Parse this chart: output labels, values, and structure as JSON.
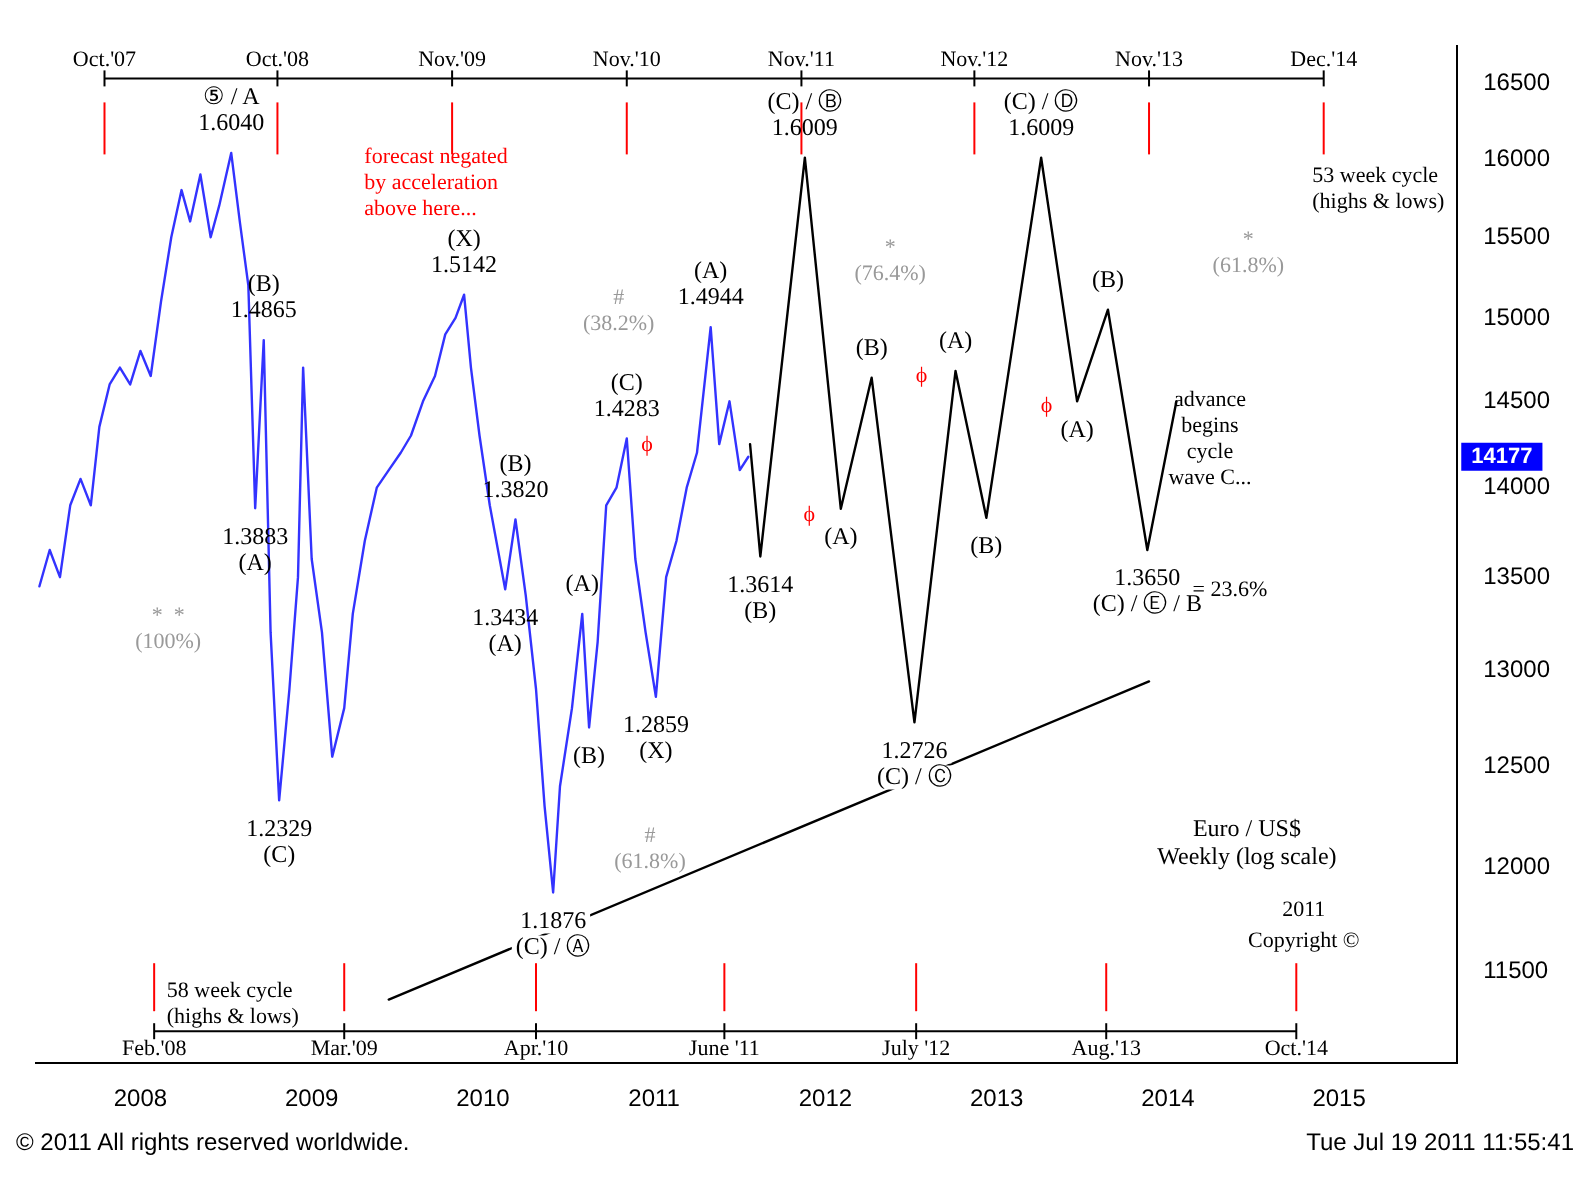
{
  "chart_data": {
    "type": "line",
    "title": "Euro / US$",
    "subtitle": "Weekly (log scale)",
    "log": "y",
    "legend": false,
    "marker": "none",
    "line_style": "solid",
    "xlim": [
      2007.39,
      2015.69
    ],
    "xticks": [
      2008,
      2009,
      2010,
      2011,
      2012,
      2013,
      2014,
      2015
    ],
    "ylim": [
      11080,
      16750
    ],
    "yticks": [
      11500,
      12000,
      12500,
      13000,
      13500,
      14000,
      14500,
      15000,
      15500,
      16000,
      16500
    ],
    "series": [
      {
        "color": "#3333ff",
        "x": [
          2007.41,
          2007.47,
          2007.53,
          2007.59,
          2007.65,
          2007.71,
          2007.76,
          2007.82,
          2007.88,
          2007.94,
          2008.0,
          2008.06,
          2008.12,
          2008.18,
          2008.24,
          2008.29,
          2008.35,
          2008.41,
          2008.46,
          2008.53,
          2008.58,
          2008.63,
          2008.67,
          2008.72,
          2008.76,
          2008.81,
          2008.87,
          2008.92,
          2008.95,
          2009.0,
          2009.06,
          2009.12,
          2009.19,
          2009.24,
          2009.31,
          2009.38,
          2009.45,
          2009.52,
          2009.58,
          2009.65,
          2009.72,
          2009.78,
          2009.84,
          2009.89,
          2009.93,
          2009.98,
          2010.04,
          2010.13,
          2010.19,
          2010.25,
          2010.31,
          2010.36,
          2010.41,
          2010.45,
          2010.52,
          2010.58,
          2010.62,
          2010.67,
          2010.72,
          2010.78,
          2010.84,
          2010.89,
          2010.95,
          2011.01,
          2011.07,
          2011.13,
          2011.19,
          2011.25,
          2011.33,
          2011.38,
          2011.44,
          2011.5,
          2011.55
        ],
        "values": [
          13450,
          13650,
          13500,
          13900,
          14050,
          13900,
          14350,
          14600,
          14700,
          14600,
          14800,
          14650,
          15100,
          15500,
          15800,
          15600,
          15900,
          15500,
          15700,
          16040,
          15600,
          15200,
          13883,
          14865,
          13200,
          12329,
          12900,
          13500,
          14700,
          13600,
          13200,
          12550,
          12800,
          13300,
          13700,
          14000,
          14100,
          14200,
          14300,
          14500,
          14650,
          14900,
          15000,
          15142,
          14700,
          14300,
          13900,
          13434,
          13820,
          13400,
          12900,
          12300,
          11876,
          12400,
          12800,
          13300,
          12700,
          13150,
          13900,
          14000,
          14283,
          13600,
          13200,
          12859,
          13500,
          13700,
          14000,
          14200,
          14944,
          14250,
          14500,
          14100,
          14177
        ]
      },
      {
        "color": "#000000",
        "x": [
          2011.56,
          2011.62,
          2011.88,
          2012.09,
          2012.27,
          2012.52,
          2012.76,
          2012.94,
          2013.26,
          2013.47,
          2013.65,
          2013.88,
          2014.05
        ],
        "values": [
          14250,
          13614,
          16009,
          13880,
          14640,
          12726,
          14680,
          13830,
          16009,
          14500,
          15050,
          13650,
          14500
        ]
      },
      {
        "color": "#000000",
        "x": [
          2009.45,
          2013.89
        ],
        "values": [
          11370,
          12940
        ]
      }
    ],
    "ref_lines": [
      {
        "axis": "x",
        "value": 2007.79,
        "label": "Oct.'07",
        "color": "#ff0000"
      },
      {
        "axis": "x",
        "value": 2008.8,
        "label": "Oct.'08",
        "color": "#ff0000"
      },
      {
        "axis": "x",
        "value": 2009.82,
        "label": "Nov.'09",
        "color": "#ff0000"
      },
      {
        "axis": "x",
        "value": 2010.84,
        "label": "Nov.'10",
        "color": "#ff0000"
      },
      {
        "axis": "x",
        "value": 2011.86,
        "label": "Nov.'11",
        "color": "#ff0000"
      },
      {
        "axis": "x",
        "value": 2012.87,
        "label": "Nov.'12",
        "color": "#ff0000"
      },
      {
        "axis": "x",
        "value": 2013.89,
        "label": "Nov.'13",
        "color": "#ff0000"
      },
      {
        "axis": "x",
        "value": 2014.91,
        "label": "Dec.'14",
        "color": "#ff0000"
      },
      {
        "axis": "x",
        "value": 2008.08,
        "label": "Feb.'08",
        "color": "#ff0000"
      },
      {
        "axis": "x",
        "value": 2009.19,
        "label": "Mar.'09",
        "color": "#ff0000"
      },
      {
        "axis": "x",
        "value": 2010.31,
        "label": "Apr.'10",
        "color": "#ff0000"
      },
      {
        "axis": "x",
        "value": 2011.41,
        "label": "June '11",
        "color": "#ff0000"
      },
      {
        "axis": "x",
        "value": 2012.53,
        "label": "July '12",
        "color": "#ff0000"
      },
      {
        "axis": "x",
        "value": 2013.64,
        "label": "Aug.'13",
        "color": "#ff0000"
      },
      {
        "axis": "x",
        "value": 2014.75,
        "label": "Oct.'14",
        "color": "#ff0000"
      }
    ],
    "annotations": [
      {
        "text": "⑤ / A\n1.6040",
        "x": 2008.53,
        "y": 16040
      },
      {
        "text": "(B)\n1.4865",
        "x": 2008.72,
        "y": 14865
      },
      {
        "text": "1.3883\n(A)",
        "x": 2008.67,
        "y": 13883
      },
      {
        "text": "(X)\n1.5142",
        "x": 2009.89,
        "y": 15142
      },
      {
        "text": "(A)\n1.4944",
        "x": 2011.33,
        "y": 14944
      },
      {
        "text": "(C)\n1.4283",
        "x": 2010.84,
        "y": 14283
      },
      {
        "text": "(B)\n1.3820",
        "x": 2010.19,
        "y": 13820
      },
      {
        "text": "1.3434\n(A)",
        "x": 2010.13,
        "y": 13434
      },
      {
        "text": "(A)",
        "x": 2010.58,
        "y": 13300
      },
      {
        "text": "(B)",
        "x": 2010.62,
        "y": 12700
      },
      {
        "text": "1.2859\n(X)",
        "x": 2011.01,
        "y": 12859
      },
      {
        "text": "1.2329\n(C)",
        "x": 2008.81,
        "y": 12329
      },
      {
        "text": "1.1876\n(C) / Ⓐ",
        "x": 2010.41,
        "y": 11876
      },
      {
        "text": "1.3614\n(B)",
        "x": 2011.62,
        "y": 13614
      },
      {
        "text": "(C) / Ⓑ\n1.6009",
        "x": 2011.88,
        "y": 16009
      },
      {
        "text": "(C) / Ⓓ\n1.6009",
        "x": 2013.26,
        "y": 16009
      },
      {
        "text": "(A)",
        "x": 2012.09,
        "y": 13880
      },
      {
        "text": "(B)",
        "x": 2012.27,
        "y": 14640
      },
      {
        "text": "(A)",
        "x": 2012.76,
        "y": 14680
      },
      {
        "text": "(B)",
        "x": 2012.94,
        "y": 13830
      },
      {
        "text": "(A)",
        "x": 2013.47,
        "y": 14500
      },
      {
        "text": "(B)",
        "x": 2013.65,
        "y": 15050
      },
      {
        "text": "1.2726\n(C) / Ⓒ",
        "x": 2012.52,
        "y": 12726
      },
      {
        "text": "1.3650\n(C) / Ⓔ / B",
        "x": 2013.88,
        "y": 13650
      },
      {
        "text": "14177",
        "y": 14177
      },
      "forecast negated\nby acceleration\nabove here...",
      "*  *\n(100%)",
      "#\n(38.2%)",
      "*\n(76.4%)",
      "*\n(61.8%)",
      "#\n(61.8%)",
      "ϕ",
      "ϕ",
      "ϕ",
      "ϕ",
      "= 23.6%",
      "advance\nbegins\ncycle\nwave C...",
      "53 week cycle\n(highs & lows)",
      "58 week cycle\n(highs & lows)",
      "2011",
      "Copyright ©",
      "© 2011 All rights reserved worldwide.",
      "Tue Jul 19 2011 11:55:41"
    ]
  }
}
